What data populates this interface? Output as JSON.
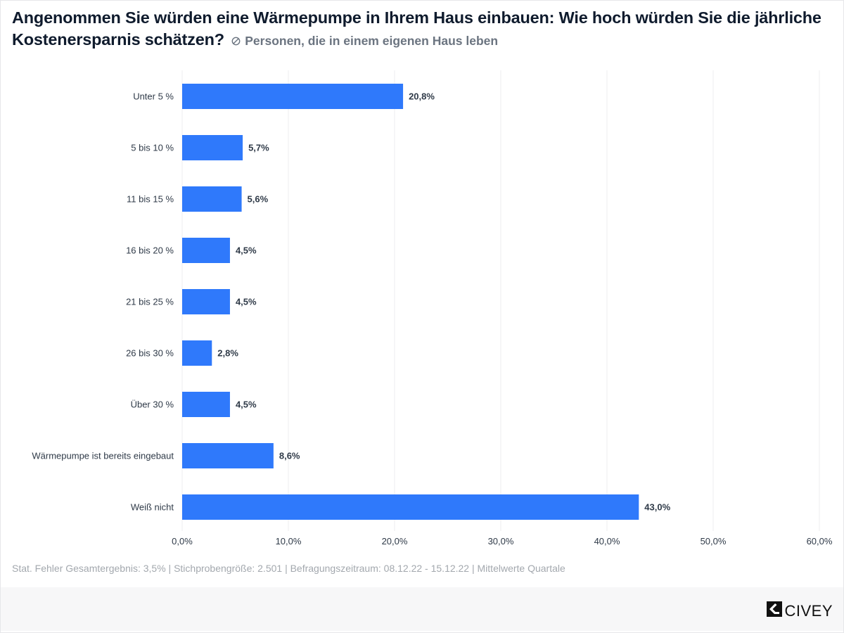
{
  "header": {
    "title": "Angenommen Sie würden eine Wärmepumpe in Ihrem Haus einbauen: Wie hoch würden Sie die jährliche Kostenersparnis schätzen?",
    "filter_icon": "filter-circle-slash-icon",
    "subtitle": "Personen, die in einem eigenen Haus leben"
  },
  "colors": {
    "bar": "#2f79fb",
    "grid": "#ececef",
    "text": "#2f3a48"
  },
  "chart_data": {
    "type": "bar",
    "orientation": "horizontal",
    "title": "Angenommen Sie würden eine Wärmepumpe in Ihrem Haus einbauen: Wie hoch würden Sie die jährliche Kostenersparnis schätzen?",
    "subtitle": "Personen, die in einem eigenen Haus leben",
    "categories": [
      "Unter 5 %",
      "5 bis 10 %",
      "11 bis 15 %",
      "16 bis 20 %",
      "21 bis 25 %",
      "26 bis 30 %",
      "Über 30 %",
      "Wärmepumpe ist bereits eingebaut",
      "Weiß nicht"
    ],
    "values": [
      20.8,
      5.7,
      5.6,
      4.5,
      4.5,
      2.8,
      4.5,
      8.6,
      43.0
    ],
    "value_labels": [
      "20,8%",
      "5,7%",
      "5,6%",
      "4,5%",
      "4,5%",
      "2,8%",
      "4,5%",
      "8,6%",
      "43,0%"
    ],
    "xlabel": "",
    "ylabel": "",
    "xlim": [
      0,
      60
    ],
    "xticks": [
      0,
      10,
      20,
      30,
      40,
      50,
      60
    ],
    "xtick_labels": [
      "0,0%",
      "10,0%",
      "20,0%",
      "30,0%",
      "40,0%",
      "50,0%",
      "60,0%"
    ],
    "grid": "vertical",
    "legend": "none"
  },
  "footer": {
    "note": "Stat. Fehler Gesamtergebnis: 3,5% | Stichprobengröße: 2.501 | Befragungszeitraum: 08.12.22 - 15.12.22 | Mittelwerte Quartale",
    "brand": "CIVEY",
    "brand_icon": "civey-logo-icon"
  }
}
